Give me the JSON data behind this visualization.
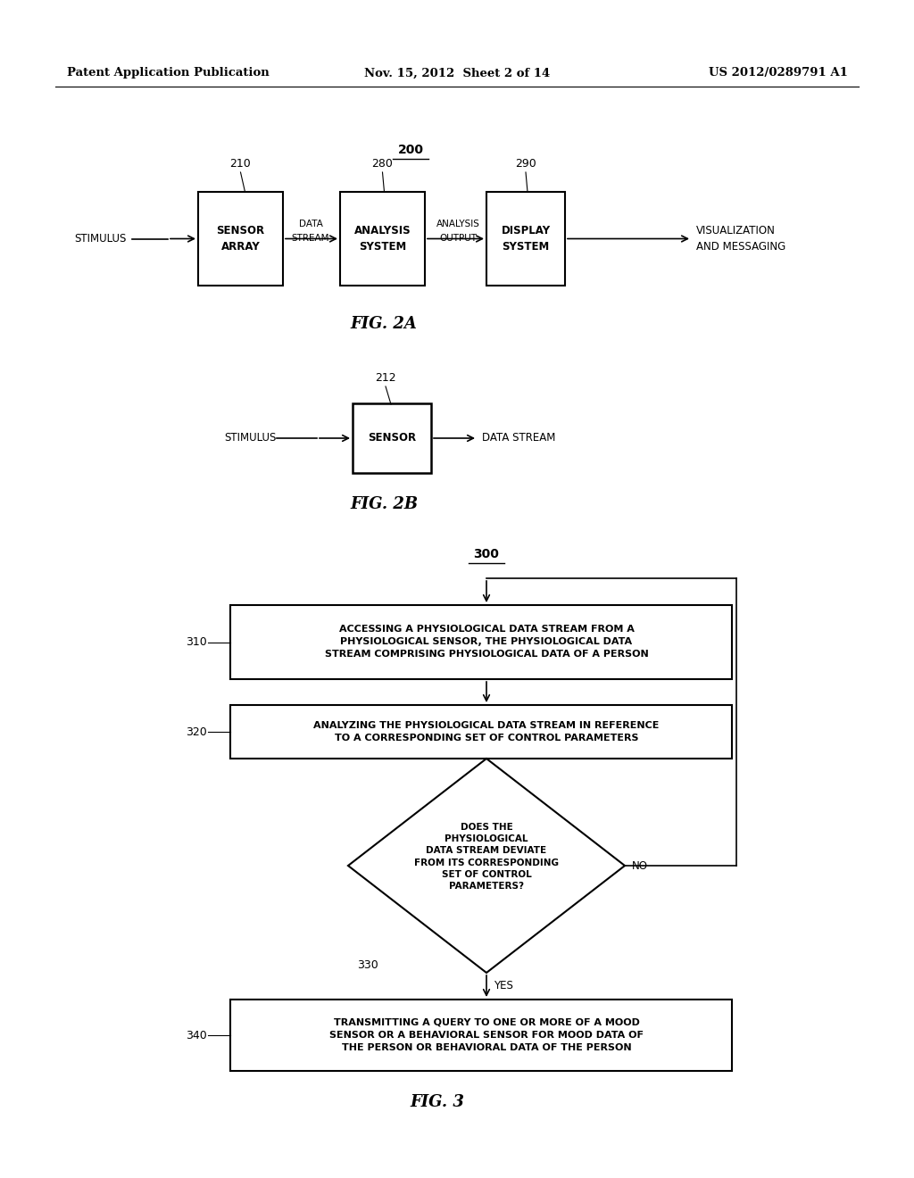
{
  "bg_color": "#ffffff",
  "header_left": "Patent Application Publication",
  "header_mid": "Nov. 15, 2012  Sheet 2 of 14",
  "header_right": "US 2012/0289791 A1"
}
